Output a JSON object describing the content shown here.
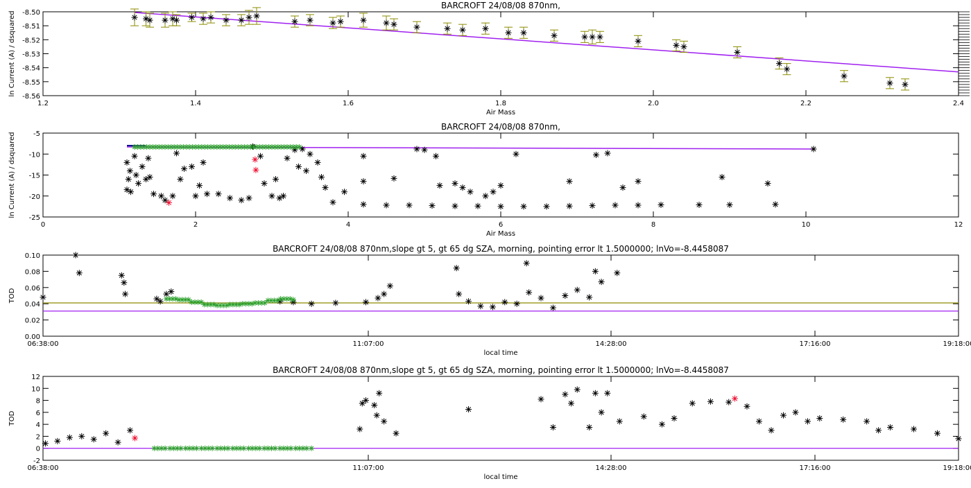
{
  "chart_data": [
    {
      "type": "scatter",
      "title": "BARCROFT 24/08/08 870nm,",
      "xlabel": "Air Mass",
      "ylabel": "ln Current (A) / dsquared",
      "xlim": [
        1.2,
        2.4
      ],
      "ylim": [
        -8.56,
        -8.5
      ],
      "x_ticks": [
        "1.2",
        "1.4",
        "1.6",
        "1.8",
        "2.0",
        "2.2",
        "2.4"
      ],
      "y_ticks": [
        "-8.50",
        "-8.51",
        "-8.52",
        "-8.53",
        "-8.54",
        "-8.55",
        "-8.56"
      ],
      "colors": {
        "points": "#000000",
        "error_bars": "#8b8b00",
        "fit_line": "#a020f0"
      },
      "fit_line": [
        [
          1.32,
          -8.5005
        ],
        [
          2.4,
          -8.543
        ]
      ],
      "points": [
        [
          1.32,
          -8.504,
          0.006
        ],
        [
          1.335,
          -8.505,
          0.005
        ],
        [
          1.34,
          -8.506,
          0.005
        ],
        [
          1.36,
          -8.506,
          0.005
        ],
        [
          1.37,
          -8.505,
          0.005
        ],
        [
          1.375,
          -8.506,
          0.004
        ],
        [
          1.395,
          -8.504,
          0.003
        ],
        [
          1.41,
          -8.505,
          0.004
        ],
        [
          1.42,
          -8.504,
          0.004
        ],
        [
          1.44,
          -8.506,
          0.004
        ],
        [
          1.46,
          -8.506,
          0.004
        ],
        [
          1.47,
          -8.504,
          0.005
        ],
        [
          1.48,
          -8.503,
          0.006
        ],
        [
          1.53,
          -8.507,
          0.004
        ],
        [
          1.55,
          -8.506,
          0.004
        ],
        [
          1.58,
          -8.508,
          0.004
        ],
        [
          1.59,
          -8.507,
          0.004
        ],
        [
          1.62,
          -8.506,
          0.005
        ],
        [
          1.65,
          -8.508,
          0.005
        ],
        [
          1.66,
          -8.509,
          0.004
        ],
        [
          1.69,
          -8.511,
          0.004
        ],
        [
          1.73,
          -8.512,
          0.004
        ],
        [
          1.75,
          -8.513,
          0.004
        ],
        [
          1.78,
          -8.512,
          0.004
        ],
        [
          1.81,
          -8.515,
          0.004
        ],
        [
          1.83,
          -8.515,
          0.004
        ],
        [
          1.87,
          -8.517,
          0.004
        ],
        [
          1.91,
          -8.518,
          0.004
        ],
        [
          1.92,
          -8.518,
          0.005
        ],
        [
          1.93,
          -8.518,
          0.004
        ],
        [
          1.98,
          -8.521,
          0.004
        ],
        [
          2.03,
          -8.524,
          0.004
        ],
        [
          2.04,
          -8.525,
          0.004
        ],
        [
          2.11,
          -8.529,
          0.004
        ],
        [
          2.165,
          -8.537,
          0.004
        ],
        [
          2.175,
          -8.541,
          0.004
        ],
        [
          2.25,
          -8.546,
          0.004
        ],
        [
          2.31,
          -8.551,
          0.004
        ],
        [
          2.33,
          -8.552,
          0.004
        ]
      ]
    },
    {
      "type": "scatter",
      "title": "BARCROFT 24/08/08 870nm,",
      "xlabel": "Air Mass",
      "ylabel": "ln Current (A) / dsquared",
      "xlim": [
        0,
        12
      ],
      "ylim": [
        -25,
        -5
      ],
      "x_ticks": [
        "0",
        "2",
        "4",
        "6",
        "8",
        "10",
        "12"
      ],
      "y_ticks": [
        "-5",
        "-10",
        "-15",
        "-20",
        "-25"
      ],
      "colors": {
        "points": "#000000",
        "selected": "#2ca02c",
        "flagged": "#ee1133",
        "fit_line": "#a020f0",
        "short_line": "#00008b"
      },
      "fit_line": [
        [
          1.1,
          -8.3
        ],
        [
          10.1,
          -8.8
        ]
      ],
      "flagged_points": [
        [
          2.78,
          -11.3
        ],
        [
          2.79,
          -13.8
        ],
        [
          1.65,
          -21.6
        ]
      ],
      "points": [
        [
          1.1,
          -12
        ],
        [
          1.1,
          -18.5
        ],
        [
          1.12,
          -16
        ],
        [
          1.14,
          -14
        ],
        [
          1.15,
          -19
        ],
        [
          1.2,
          -10.5
        ],
        [
          1.22,
          -15
        ],
        [
          1.25,
          -17
        ],
        [
          1.3,
          -13
        ],
        [
          1.35,
          -16
        ],
        [
          1.38,
          -11
        ],
        [
          1.4,
          -15.5
        ],
        [
          1.45,
          -19.5
        ],
        [
          1.55,
          -20
        ],
        [
          1.6,
          -21
        ],
        [
          1.7,
          -20
        ],
        [
          1.75,
          -9.8
        ],
        [
          1.8,
          -16
        ],
        [
          1.85,
          -13.5
        ],
        [
          1.95,
          -13
        ],
        [
          2.0,
          -20
        ],
        [
          2.05,
          -17.5
        ],
        [
          2.1,
          -12
        ],
        [
          2.15,
          -19.5
        ],
        [
          2.3,
          -19.5
        ],
        [
          2.45,
          -20.5
        ],
        [
          2.6,
          -21
        ],
        [
          2.7,
          -20.5
        ],
        [
          2.75,
          -8.2
        ],
        [
          2.85,
          -10.5
        ],
        [
          2.9,
          -17
        ],
        [
          3.0,
          -20
        ],
        [
          3.05,
          -16
        ],
        [
          3.1,
          -20.5
        ],
        [
          3.15,
          -20
        ],
        [
          3.2,
          -11
        ],
        [
          3.3,
          -9
        ],
        [
          3.35,
          -13
        ],
        [
          3.4,
          -8.8
        ],
        [
          3.45,
          -14
        ],
        [
          3.5,
          -10
        ],
        [
          3.6,
          -12
        ],
        [
          3.65,
          -15.5
        ],
        [
          3.7,
          -18
        ],
        [
          3.8,
          -21.5
        ],
        [
          3.95,
          -19
        ],
        [
          4.2,
          -22
        ],
        [
          4.5,
          -22.2
        ],
        [
          4.8,
          -22.2
        ],
        [
          5.1,
          -22.3
        ],
        [
          5.4,
          -22.4
        ],
        [
          5.7,
          -22.4
        ],
        [
          6.0,
          -22.5
        ],
        [
          6.3,
          -22.5
        ],
        [
          6.6,
          -22.5
        ],
        [
          6.9,
          -22.4
        ],
        [
          7.2,
          -22.3
        ],
        [
          7.5,
          -22.2
        ],
        [
          7.8,
          -22.2
        ],
        [
          8.1,
          -22.1
        ],
        [
          8.6,
          -22.1
        ],
        [
          9.0,
          -22.1
        ],
        [
          9.6,
          -22.0
        ],
        [
          4.2,
          -10.5
        ],
        [
          4.2,
          -16.5
        ],
        [
          4.6,
          -15.8
        ],
        [
          4.9,
          -8.8
        ],
        [
          5.0,
          -9
        ],
        [
          5.15,
          -10.5
        ],
        [
          5.2,
          -17.5
        ],
        [
          5.4,
          -17
        ],
        [
          5.5,
          -18
        ],
        [
          5.6,
          -19
        ],
        [
          5.8,
          -20
        ],
        [
          5.9,
          -19
        ],
        [
          6.0,
          -17.5
        ],
        [
          6.2,
          -10
        ],
        [
          6.9,
          -16.5
        ],
        [
          7.25,
          -10.2
        ],
        [
          7.4,
          -9.8
        ],
        [
          7.6,
          -18
        ],
        [
          7.8,
          -16.5
        ],
        [
          8.9,
          -15.5
        ],
        [
          9.5,
          -17
        ],
        [
          10.1,
          -8.8
        ]
      ],
      "selected_band": {
        "x_range": [
          1.2,
          3.4
        ],
        "y": -8.3
      }
    },
    {
      "type": "scatter",
      "title": "BARCROFT 24/08/08 870nm,slope gt 5, gt 65 dg SZA, morning, pointing error lt 1.5000000; lnVo=-8.4458087",
      "xlabel": "local time",
      "ylabel": "TOD",
      "x_tick_labels": [
        "06:38:00",
        "11:07:00",
        "14:28:00",
        "17:16:00",
        "19:18:00"
      ],
      "y_ticks": [
        "0.00",
        "0.02",
        "0.04",
        "0.06",
        "0.08",
        "0.10"
      ],
      "ylim": [
        0,
        0.1
      ],
      "colors": {
        "points": "#000000",
        "selected": "#2ca02c",
        "olive_line": "#8b8b00",
        "purple_line": "#a020f0"
      },
      "hlines": [
        {
          "y": 0.041,
          "color": "#8b8b00"
        },
        {
          "y": 0.031,
          "color": "#a020f0"
        }
      ],
      "points": [
        [
          "06:38:00",
          0.048
        ],
        [
          "07:05:00",
          0.1
        ],
        [
          "07:08:00",
          0.078
        ],
        [
          "07:43:00",
          0.075
        ],
        [
          "07:45:00",
          0.066
        ],
        [
          "07:46:00",
          0.052
        ],
        [
          "08:12:00",
          0.046
        ],
        [
          "08:15:00",
          0.043
        ],
        [
          "08:20:00",
          0.052
        ],
        [
          "08:24:00",
          0.055
        ],
        [
          "09:54:00",
          0.043
        ],
        [
          "10:05:00",
          0.042
        ],
        [
          "10:20:00",
          0.04
        ],
        [
          "10:40:00",
          0.041
        ],
        [
          "11:05:00",
          0.042
        ],
        [
          "11:15:00",
          0.047
        ],
        [
          "11:20:00",
          0.052
        ],
        [
          "11:25:00",
          0.062
        ],
        [
          "12:20:00",
          0.084
        ],
        [
          "12:22:00",
          0.052
        ],
        [
          "12:30:00",
          0.043
        ],
        [
          "12:40:00",
          0.037
        ],
        [
          "12:50:00",
          0.036
        ],
        [
          "13:00:00",
          0.042
        ],
        [
          "13:10:00",
          0.04
        ],
        [
          "13:18:00",
          0.09
        ],
        [
          "13:20:00",
          0.054
        ],
        [
          "13:30:00",
          0.047
        ],
        [
          "13:40:00",
          0.035
        ],
        [
          "13:50:00",
          0.05
        ],
        [
          "14:00:00",
          0.057
        ],
        [
          "14:10:00",
          0.048
        ],
        [
          "14:15:00",
          0.08
        ],
        [
          "14:20:00",
          0.067
        ],
        [
          "14:33:00",
          0.078
        ]
      ],
      "selected_points": {
        "time_range": [
          "08:20:00",
          "10:05:00"
        ],
        "values": [
          0.046,
          0.045,
          0.042,
          0.039,
          0.038,
          0.039,
          0.04,
          0.041,
          0.044,
          0.046,
          0.045
        ]
      }
    },
    {
      "type": "scatter",
      "title": "BARCROFT 24/08/08 870nm,slope gt 5, gt 65 dg SZA, morning, pointing error lt 1.5000000; lnVo=-8.4458087",
      "xlabel": "local time",
      "ylabel": "TOD",
      "x_tick_labels": [
        "06:38:00",
        "11:07:00",
        "14:28:00",
        "17:16:00",
        "19:18:00"
      ],
      "y_ticks": [
        "-2",
        "0",
        "2",
        "4",
        "6",
        "8",
        "10",
        "12"
      ],
      "ylim": [
        -2,
        12
      ],
      "colors": {
        "points": "#000000",
        "selected": "#2ca02c",
        "flagged": "#ee1133",
        "zero_line": "#a020f0"
      },
      "hlines": [
        {
          "y": 0,
          "color": "#a020f0"
        }
      ],
      "flagged_points": [
        [
          "07:54:00",
          1.7
        ],
        [
          "16:10:00",
          8.3
        ]
      ],
      "points": [
        [
          "06:40:00",
          0.8
        ],
        [
          "06:50:00",
          1.2
        ],
        [
          "07:00:00",
          1.8
        ],
        [
          "07:10:00",
          2.0
        ],
        [
          "07:20:00",
          1.5
        ],
        [
          "07:30:00",
          2.5
        ],
        [
          "07:40:00",
          1.0
        ],
        [
          "07:50:00",
          3.0
        ],
        [
          "11:00:00",
          3.2
        ],
        [
          "11:02:00",
          7.5
        ],
        [
          "11:05:00",
          8.0
        ],
        [
          "11:12:00",
          7.2
        ],
        [
          "11:14:00",
          5.5
        ],
        [
          "11:16:00",
          9.2
        ],
        [
          "11:20:00",
          4.5
        ],
        [
          "11:30:00",
          2.5
        ],
        [
          "12:30:00",
          6.5
        ],
        [
          "13:30:00",
          8.2
        ],
        [
          "13:40:00",
          3.5
        ],
        [
          "13:50:00",
          9.0
        ],
        [
          "13:55:00",
          7.5
        ],
        [
          "14:00:00",
          9.8
        ],
        [
          "14:10:00",
          3.5
        ],
        [
          "14:15:00",
          9.2
        ],
        [
          "14:20:00",
          6.0
        ],
        [
          "14:25:00",
          9.2
        ],
        [
          "14:35:00",
          4.5
        ],
        [
          "14:55:00",
          5.3
        ],
        [
          "15:10:00",
          4.0
        ],
        [
          "15:20:00",
          5.0
        ],
        [
          "15:35:00",
          7.5
        ],
        [
          "15:50:00",
          7.8
        ],
        [
          "16:05:00",
          7.7
        ],
        [
          "16:20:00",
          7.0
        ],
        [
          "16:30:00",
          4.5
        ],
        [
          "16:40:00",
          3.0
        ],
        [
          "16:50:00",
          5.5
        ],
        [
          "17:00:00",
          6.0
        ],
        [
          "17:10:00",
          4.5
        ],
        [
          "17:20:00",
          5.0
        ],
        [
          "17:40:00",
          4.8
        ],
        [
          "18:00:00",
          4.5
        ],
        [
          "18:10:00",
          3.0
        ],
        [
          "18:20:00",
          3.5
        ],
        [
          "18:40:00",
          3.2
        ],
        [
          "19:00:00",
          2.5
        ],
        [
          "19:18:00",
          1.6
        ]
      ]
    }
  ]
}
